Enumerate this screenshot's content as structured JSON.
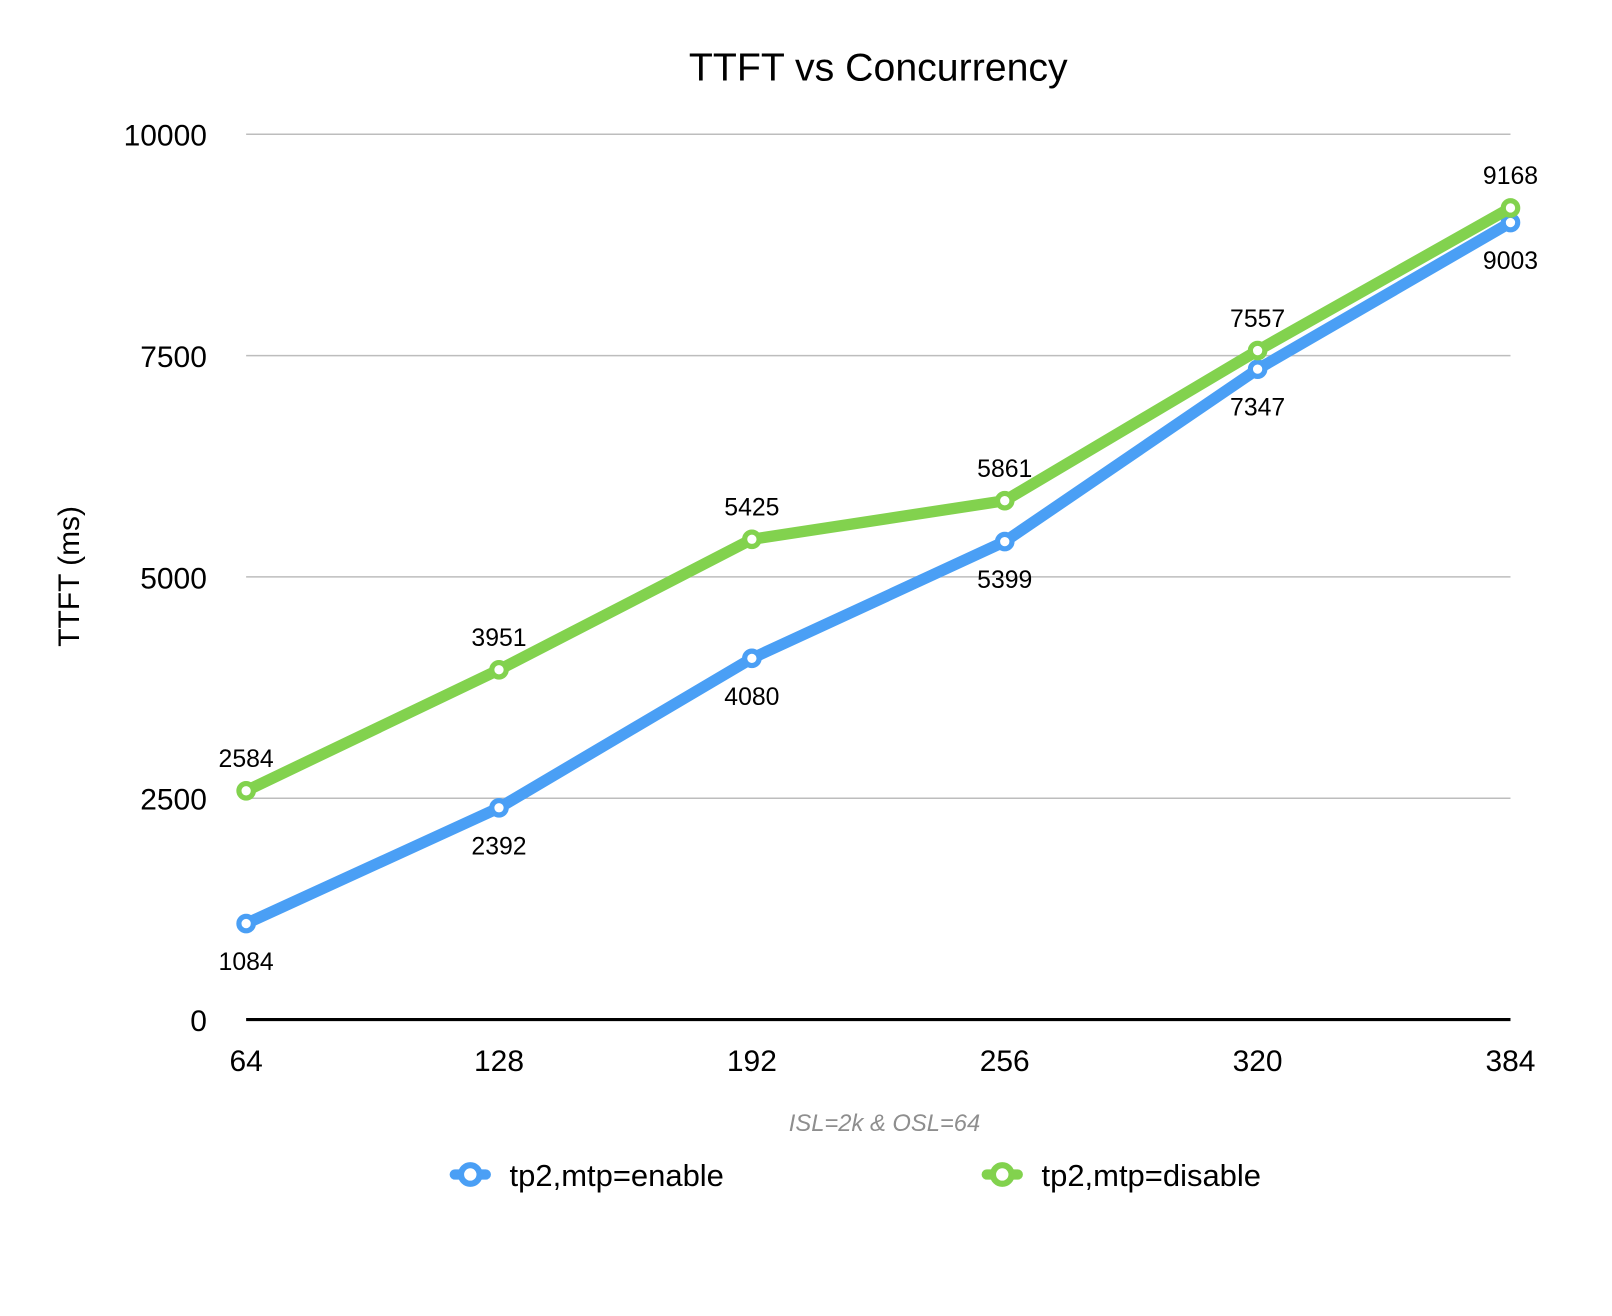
{
  "chart_data": {
    "type": "line",
    "title": "TTFT vs Concurrency",
    "xlabel": "ISL=2k & OSL=64",
    "ylabel": "TTFT (ms)",
    "categories": [
      "64",
      "128",
      "192",
      "256",
      "320",
      "384"
    ],
    "ylim": [
      0,
      10000
    ],
    "yticks": [
      "0",
      "2500",
      "5000",
      "7500",
      "10000"
    ],
    "grid": true,
    "legend": "bottom",
    "series": [
      {
        "name": "tp2,mtp=enable",
        "color": "#4a9ff5",
        "values": [
          1084,
          2392,
          4080,
          5399,
          7347,
          9003
        ],
        "labels": [
          "1084",
          "2392",
          "4080",
          "5399",
          "7347",
          "9003"
        ]
      },
      {
        "name": "tp2,mtp=disable",
        "color": "#82d24e",
        "values": [
          2584,
          3951,
          5425,
          5861,
          7557,
          9168
        ],
        "labels": [
          "2584",
          "3951",
          "5425",
          "5861",
          "7557",
          "9168"
        ]
      }
    ]
  }
}
